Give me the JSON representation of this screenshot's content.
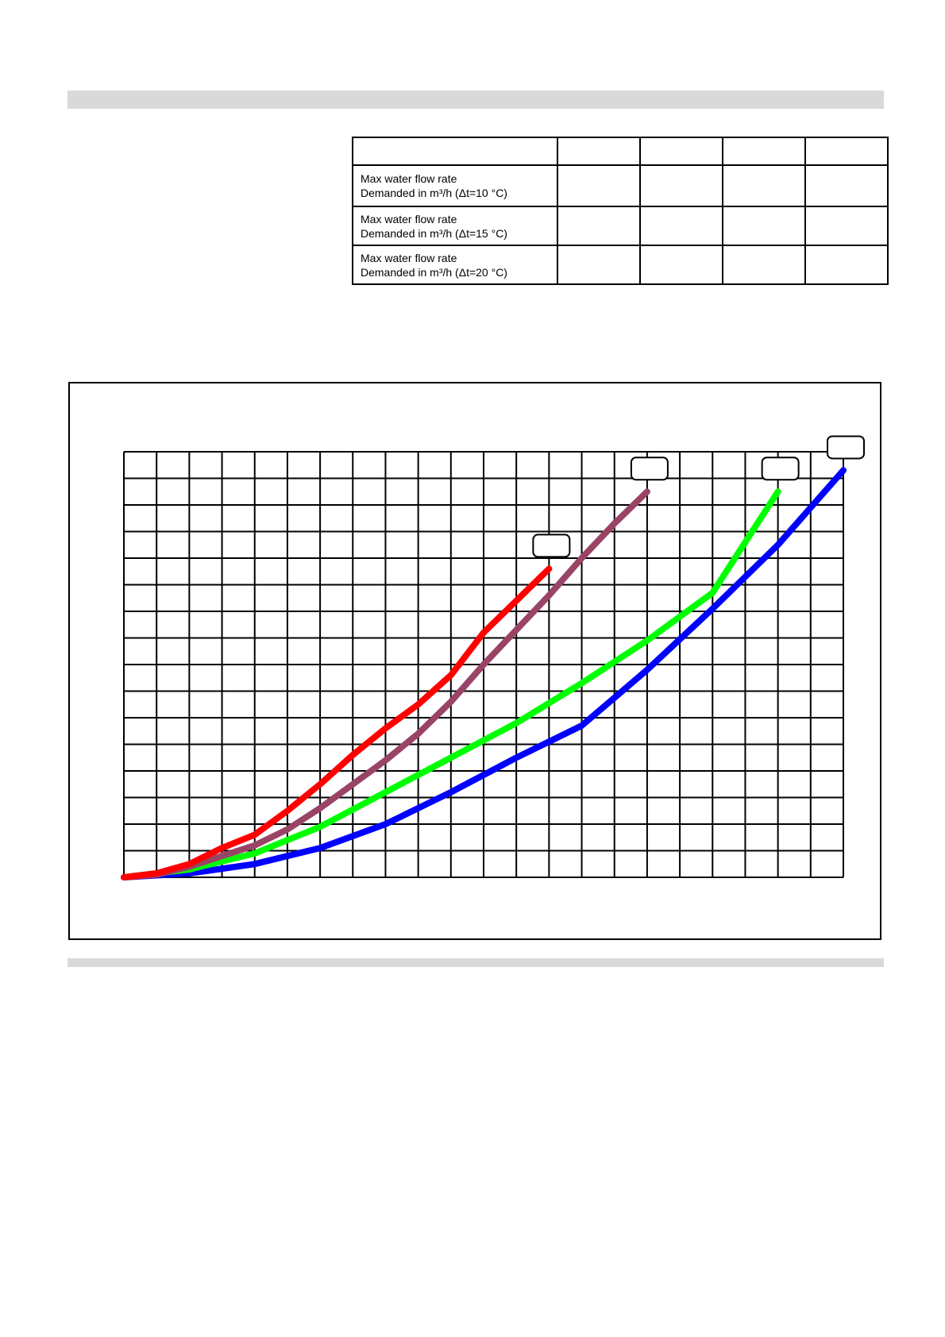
{
  "flow_table": {
    "header": [
      "",
      "",
      "",
      "",
      ""
    ],
    "rows": [
      {
        "label_line1": "Max water flow rate",
        "label_line2": "Demanded in m³/h (Δt=10 °C)",
        "values": [
          "",
          "",
          "",
          ""
        ]
      },
      {
        "label_line1": "Max water flow rate",
        "label_line2": "Demanded in m³/h (Δt=15 °C)",
        "values": [
          "",
          "",
          "",
          ""
        ]
      },
      {
        "label_line1": "Max water flow rate",
        "label_line2": "Demanded in m³/h (Δt=20 °C)",
        "values": [
          "",
          "",
          "",
          ""
        ]
      }
    ]
  },
  "colors": {
    "grid": "#000000",
    "band": "#d9d9d9"
  },
  "chart_data": {
    "type": "line",
    "title": "",
    "xlabel": "",
    "ylabel": "",
    "xlim": [
      0,
      22
    ],
    "ylim": [
      0,
      16
    ],
    "grid": true,
    "legend": "none",
    "series": [
      {
        "color": "#ff0000",
        "label_box": "",
        "x": [
          0,
          1,
          2,
          3,
          4,
          5,
          6,
          7,
          8,
          9,
          10,
          11,
          12,
          13
        ],
        "y": [
          0,
          0.15,
          0.5,
          1.1,
          1.6,
          2.5,
          3.5,
          4.6,
          5.6,
          6.5,
          7.6,
          9.2,
          10.4,
          11.6
        ]
      },
      {
        "color": "#994466",
        "label_box": "",
        "x": [
          0,
          1,
          2,
          3,
          4,
          5,
          6,
          7,
          8,
          9,
          10,
          11,
          12,
          13,
          14,
          15,
          16
        ],
        "y": [
          0,
          0.1,
          0.4,
          0.8,
          1.2,
          1.8,
          2.6,
          3.5,
          4.4,
          5.4,
          6.6,
          8.0,
          9.3,
          10.6,
          12.0,
          13.3,
          14.5
        ]
      },
      {
        "color": "#00ff00",
        "label_box": "",
        "x": [
          0,
          2,
          4,
          6,
          8,
          10,
          12,
          14,
          16,
          18,
          20
        ],
        "y": [
          0,
          0.3,
          0.9,
          1.9,
          3.2,
          4.5,
          5.8,
          7.3,
          8.9,
          10.7,
          14.5
        ]
      },
      {
        "color": "#0000ff",
        "label_box": "",
        "x": [
          0,
          2,
          4,
          6,
          8,
          10,
          12,
          14,
          16,
          18,
          20,
          22
        ],
        "y": [
          0,
          0.15,
          0.5,
          1.1,
          2.0,
          3.2,
          4.5,
          5.7,
          7.8,
          10.1,
          12.5,
          15.3
        ]
      }
    ]
  }
}
